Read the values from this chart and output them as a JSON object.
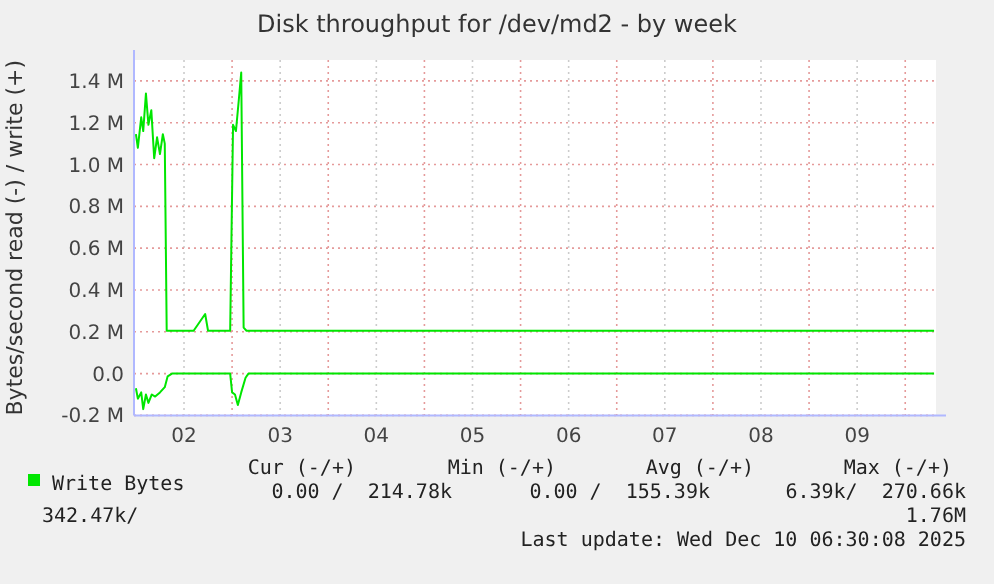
{
  "chart_data": {
    "type": "line",
    "title": "Disk throughput for /dev/md2 - by week",
    "ylabel": "Bytes/second read (-) / write (+)",
    "series": [
      {
        "name": "Write Bytes",
        "color": "#00e600",
        "x": [
          2.0,
          2.02,
          2.055,
          2.076,
          2.104,
          2.13,
          2.16,
          2.19,
          2.22,
          2.25,
          2.28,
          2.3,
          2.32,
          2.6,
          2.72,
          2.75,
          2.98,
          3.01,
          3.04,
          3.07,
          3.095,
          3.12,
          3.15,
          3.6,
          4.0,
          4.5,
          5.0,
          5.5,
          6.0,
          6.5,
          7.0,
          7.5,
          8.0,
          8.5,
          9.0,
          9.5,
          10.0,
          10.3
        ],
        "values": [
          1.145,
          1.08,
          1.226,
          1.16,
          1.34,
          1.19,
          1.26,
          1.03,
          1.13,
          1.05,
          1.145,
          1.1,
          0.205,
          0.205,
          0.285,
          0.205,
          0.205,
          1.19,
          1.16,
          1.31,
          1.44,
          0.22,
          0.205,
          0.205,
          0.205,
          0.205,
          0.205,
          0.205,
          0.205,
          0.205,
          0.205,
          0.205,
          0.205,
          0.205,
          0.205,
          0.205,
          0.205,
          0.205
        ]
      },
      {
        "color": "#00e600",
        "x": [
          2.0,
          2.02,
          2.055,
          2.076,
          2.104,
          2.13,
          2.165,
          2.2,
          2.25,
          2.3,
          2.33,
          2.375,
          2.98,
          3.0,
          3.03,
          3.06,
          3.095,
          3.14,
          3.17,
          4.0,
          5.0,
          6.0,
          7.0,
          8.0,
          9.0,
          10.0,
          10.3
        ],
        "values": [
          -0.07,
          -0.12,
          -0.09,
          -0.17,
          -0.1,
          -0.14,
          -0.1,
          -0.11,
          -0.09,
          -0.065,
          -0.013,
          0.0,
          0.0,
          -0.09,
          -0.1,
          -0.15,
          -0.09,
          -0.02,
          0.0,
          0.0,
          0.0,
          0.0,
          0.0,
          0.0,
          0.0,
          0.0,
          0.0
        ]
      }
    ],
    "xlim": [
      1.98,
      10.32
    ],
    "xticks": [
      {
        "value": 2.5,
        "label": "02"
      },
      {
        "value": 3.5,
        "label": "03"
      },
      {
        "value": 4.5,
        "label": "04"
      },
      {
        "value": 5.5,
        "label": "05"
      },
      {
        "value": 6.5,
        "label": "06"
      },
      {
        "value": 7.5,
        "label": "07"
      },
      {
        "value": 8.5,
        "label": "08"
      },
      {
        "value": 9.5,
        "label": "09"
      },
      {
        "value": 3,
        "label": null
      },
      {
        "value": 4,
        "label": null
      },
      {
        "value": 5,
        "label": null
      },
      {
        "value": 6,
        "label": null
      },
      {
        "value": 7,
        "label": null
      },
      {
        "value": 8,
        "label": null
      },
      {
        "value": 9,
        "label": null
      },
      {
        "value": 10,
        "label": null
      }
    ],
    "ylim": [
      -0.2,
      1.5
    ],
    "yticks": [
      {
        "value": -0.2,
        "label": "-0.2 M"
      },
      {
        "value": 0,
        "label": "0.0"
      },
      {
        "value": 0.2,
        "label": "0.2 M"
      },
      {
        "value": 0.4,
        "label": "0.4 M"
      },
      {
        "value": 0.6,
        "label": "0.6 M"
      },
      {
        "value": 0.8,
        "label": "0.8 M"
      },
      {
        "value": 1.0,
        "label": "1.0 M"
      },
      {
        "value": 1.2,
        "label": "1.2 M"
      },
      {
        "value": 1.4,
        "label": "1.4 M"
      }
    ],
    "grid": true,
    "legend": "bottom",
    "annotations": [
      "Cur (-/+)",
      "Min (-/+)",
      "Avg (-/+)",
      "Max (-/+)",
      "0.00 /  214.78k",
      "0.00 /  155.39k",
      "6.39k/  270.66k",
      "342.47k/",
      "1.76M",
      "Last update: Wed Dec 10 06:30:08 2025"
    ]
  }
}
